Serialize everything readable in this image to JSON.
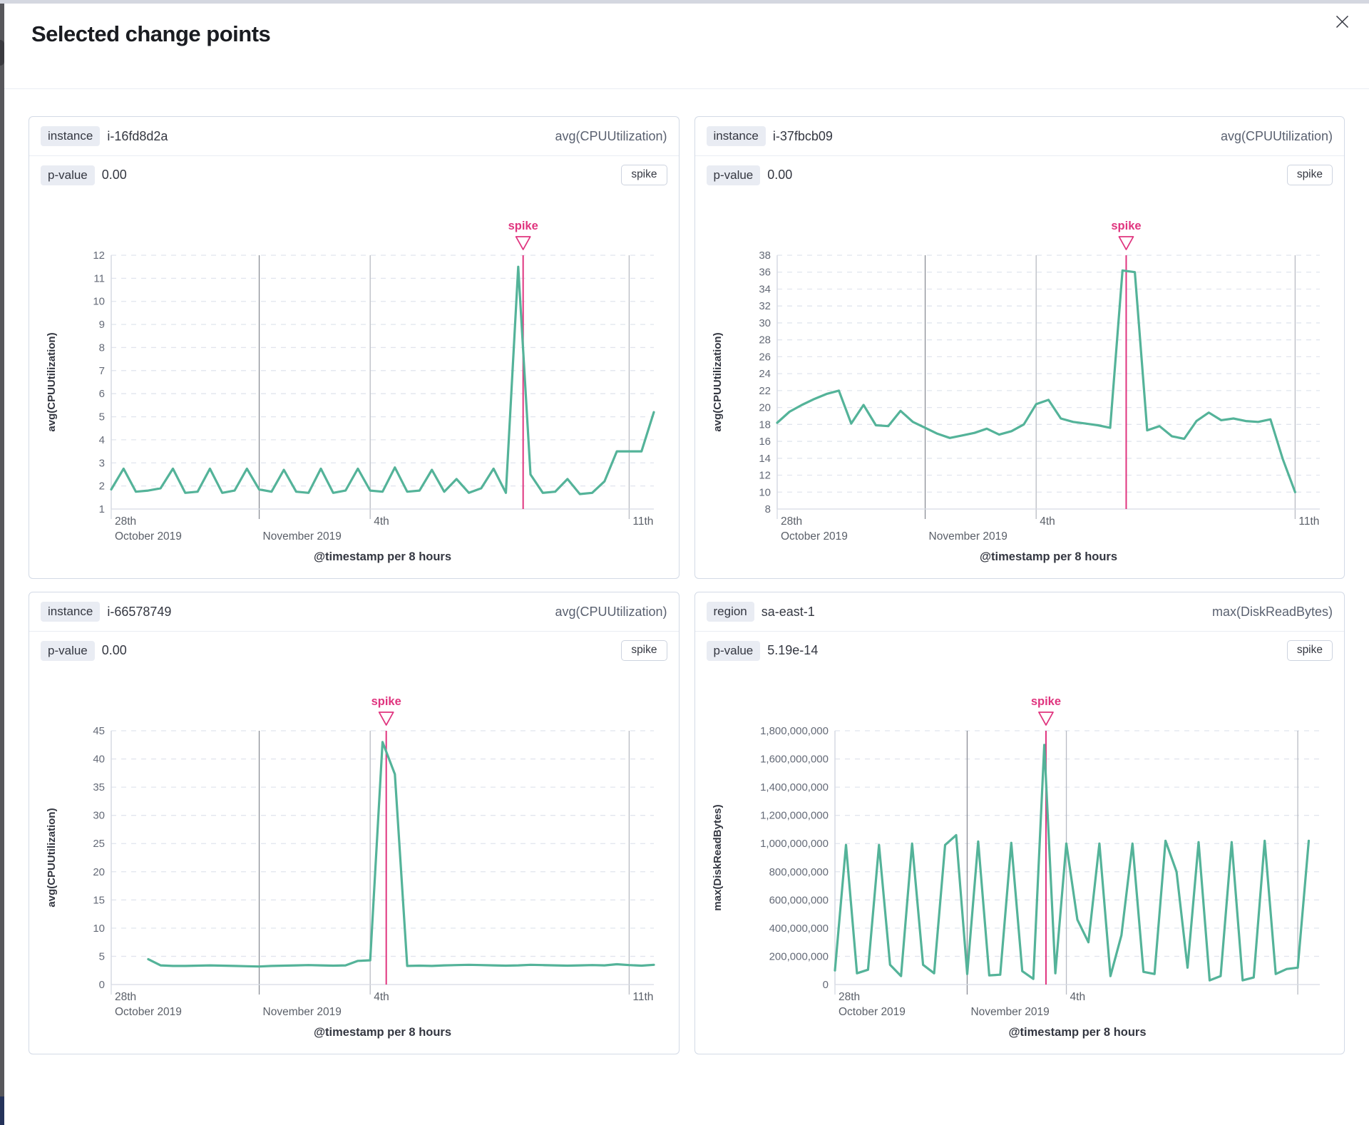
{
  "page": {
    "title": "Selected change points"
  },
  "colors": {
    "line": "#54b399",
    "spike": "#e0357f",
    "grid_dashed": "#e1e5ee",
    "grid_strong": "#8b8e96",
    "grid_light": "#b9bcc4",
    "axis": "#d6dae3",
    "tick_text": "#646a77",
    "x_tick_text": "#5b6069",
    "axis_title_text": "#343741"
  },
  "panels": [
    {
      "key_label": "instance",
      "key_value": "i-16fd8d2a",
      "metric": "avg(CPUUtilization)",
      "p_label": "p-value",
      "p_value": "0.00",
      "action": "spike"
    },
    {
      "key_label": "instance",
      "key_value": "i-37fbcb09",
      "metric": "avg(CPUUtilization)",
      "p_label": "p-value",
      "p_value": "0.00",
      "action": "spike"
    },
    {
      "key_label": "instance",
      "key_value": "i-66578749",
      "metric": "avg(CPUUtilization)",
      "p_label": "p-value",
      "p_value": "0.00",
      "action": "spike"
    },
    {
      "key_label": "region",
      "key_value": "sa-east-1",
      "metric": "max(DiskReadBytes)",
      "p_label": "p-value",
      "p_value": "5.19e-14",
      "action": "spike"
    }
  ],
  "chart_data": [
    {
      "type": "line",
      "panel": "i-16fd8d2a",
      "series_name": "avg(CPUUtilization)",
      "x_title": "@timestamp per 8 hours",
      "y_title": "avg(CPUUtilization)",
      "n_slots": 45,
      "ylim": [
        1,
        12
      ],
      "ytick_step": 1,
      "ytick_format": "plain",
      "label_width": 99,
      "gridlines": [
        {
          "i": 0,
          "top": "28th",
          "bottom": "October 2019",
          "kind": "axis"
        },
        {
          "i": 12,
          "bottom": "November 2019",
          "kind": "strong"
        },
        {
          "i": 21,
          "top": "4th",
          "kind": "light"
        },
        {
          "i": 42,
          "top": "11th",
          "kind": "light"
        }
      ],
      "spike": {
        "label": "spike",
        "x": 33.4
      },
      "values": [
        1.85,
        2.75,
        1.75,
        1.8,
        1.9,
        2.75,
        1.7,
        1.75,
        2.75,
        1.7,
        1.8,
        2.75,
        1.85,
        1.75,
        2.7,
        1.75,
        1.7,
        2.75,
        1.7,
        1.8,
        2.75,
        1.8,
        1.75,
        2.8,
        1.75,
        1.8,
        2.7,
        1.75,
        2.3,
        1.7,
        1.9,
        2.75,
        1.7,
        11.5,
        2.5,
        1.7,
        1.75,
        2.3,
        1.65,
        1.7,
        2.2,
        3.5,
        3.5,
        3.5,
        5.2
      ]
    },
    {
      "type": "line",
      "panel": "i-37fbcb09",
      "series_name": "avg(CPUUtilization)",
      "x_title": "@timestamp per 8 hours",
      "y_title": "avg(CPUUtilization)",
      "n_slots": 45,
      "ylim": [
        8,
        38
      ],
      "ytick_step": 2,
      "ytick_format": "plain",
      "label_width": 99,
      "gridlines": [
        {
          "i": 0,
          "top": "28th",
          "bottom": "October 2019",
          "kind": "axis"
        },
        {
          "i": 12,
          "bottom": "November 2019",
          "kind": "strong"
        },
        {
          "i": 21,
          "top": "4th",
          "kind": "light"
        },
        {
          "i": 42,
          "top": "11th",
          "kind": "light"
        }
      ],
      "spike": {
        "label": "spike",
        "x": 28.3
      },
      "values": [
        18.2,
        19.5,
        20.3,
        21.0,
        21.6,
        22.0,
        18.1,
        20.3,
        17.9,
        17.8,
        19.6,
        18.3,
        17.6,
        16.9,
        16.4,
        16.7,
        17.0,
        17.5,
        16.8,
        17.2,
        18.0,
        20.4,
        20.9,
        18.7,
        18.3,
        18.1,
        17.9,
        17.6,
        36.2,
        36.0,
        17.3,
        17.8,
        16.6,
        16.3,
        18.4,
        19.4,
        18.5,
        18.7,
        18.4,
        18.3,
        18.6,
        13.9,
        10.0
      ]
    },
    {
      "type": "line",
      "panel": "i-66578749",
      "series_name": "avg(CPUUtilization)",
      "x_title": "@timestamp per 8 hours",
      "y_title": "avg(CPUUtilization)",
      "n_slots": 45,
      "ylim": [
        0,
        45
      ],
      "ytick_step": 5,
      "ytick_format": "plain",
      "label_width": 99,
      "gridlines": [
        {
          "i": 0,
          "top": "28th",
          "bottom": "October 2019",
          "kind": "axis"
        },
        {
          "i": 12,
          "bottom": "November 2019",
          "kind": "strong"
        },
        {
          "i": 21,
          "top": "4th",
          "kind": "light"
        },
        {
          "i": 42,
          "top": "11th",
          "kind": "light"
        }
      ],
      "spike": {
        "label": "spike",
        "x": 22.3
      },
      "values": [
        null,
        null,
        null,
        4.5,
        3.4,
        3.3,
        3.3,
        3.35,
        3.4,
        3.35,
        3.3,
        3.25,
        3.2,
        3.3,
        3.35,
        3.4,
        3.45,
        3.4,
        3.35,
        3.4,
        4.2,
        4.3,
        43.0,
        37.3,
        3.3,
        3.35,
        3.3,
        3.4,
        3.45,
        3.5,
        3.45,
        3.4,
        3.35,
        3.4,
        3.5,
        3.45,
        3.4,
        3.35,
        3.4,
        3.45,
        3.4,
        3.6,
        3.45,
        3.35,
        3.5
      ]
    },
    {
      "type": "line",
      "panel": "sa-east-1",
      "series_name": "max(DiskReadBytes)",
      "x_title": "@timestamp per 8 hours",
      "y_title": "max(DiskReadBytes)",
      "n_slots": 45,
      "ylim": [
        0,
        1800000000
      ],
      "ytick_step": 200000000,
      "ytick_format": "comma",
      "label_width": 180,
      "gridlines": [
        {
          "i": 0,
          "top": "28th",
          "bottom": "October 2019",
          "kind": "axis"
        },
        {
          "i": 12,
          "bottom": "November 2019",
          "kind": "strong"
        },
        {
          "i": 21,
          "top": "4th",
          "kind": "light"
        },
        {
          "i": 42,
          "kind": "light"
        }
      ],
      "spike": {
        "label": "spike",
        "x": 19.15
      },
      "values": [
        100000000,
        990000000,
        80000000,
        105000000,
        990000000,
        140000000,
        60000000,
        1000000000,
        140000000,
        80000000,
        990000000,
        1060000000,
        75000000,
        1015000000,
        65000000,
        70000000,
        1005000000,
        95000000,
        40000000,
        1700000000,
        80000000,
        1000000000,
        460000000,
        300000000,
        1000000000,
        60000000,
        350000000,
        1000000000,
        90000000,
        75000000,
        1020000000,
        800000000,
        120000000,
        1010000000,
        30000000,
        60000000,
        1010000000,
        30000000,
        50000000,
        1020000000,
        75000000,
        110000000,
        120000000,
        1020000000
      ]
    }
  ]
}
